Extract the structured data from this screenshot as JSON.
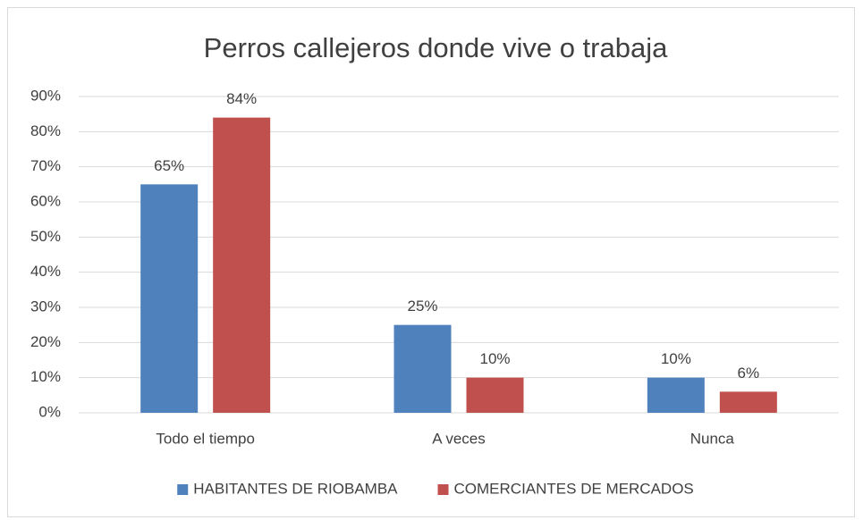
{
  "chart_data": {
    "type": "bar",
    "title": "Perros callejeros donde vive o trabaja",
    "categories": [
      "Todo el tiempo",
      "A veces",
      "Nunca"
    ],
    "series": [
      {
        "name": "HABITANTES DE RIOBAMBA",
        "color": "#4f81bd",
        "values": [
          65,
          25,
          10
        ],
        "value_labels": [
          "65%",
          "25%",
          "10%"
        ]
      },
      {
        "name": "COMERCIANTES DE MERCADOS",
        "color": "#c0504d",
        "values": [
          84,
          10,
          6
        ],
        "value_labels": [
          "84%",
          "10%",
          "6%"
        ]
      }
    ],
    "ylim": [
      0,
      90
    ],
    "yticks": [
      {
        "value": 0,
        "label": "0%"
      },
      {
        "value": 10,
        "label": "10%"
      },
      {
        "value": 20,
        "label": "20%"
      },
      {
        "value": 30,
        "label": "30%"
      },
      {
        "value": 40,
        "label": "40%"
      },
      {
        "value": 50,
        "label": "50%"
      },
      {
        "value": 60,
        "label": "60%"
      },
      {
        "value": 70,
        "label": "70%"
      },
      {
        "value": 80,
        "label": "80%"
      },
      {
        "value": 90,
        "label": "90%"
      }
    ],
    "grid": true,
    "legend": "bottom"
  }
}
